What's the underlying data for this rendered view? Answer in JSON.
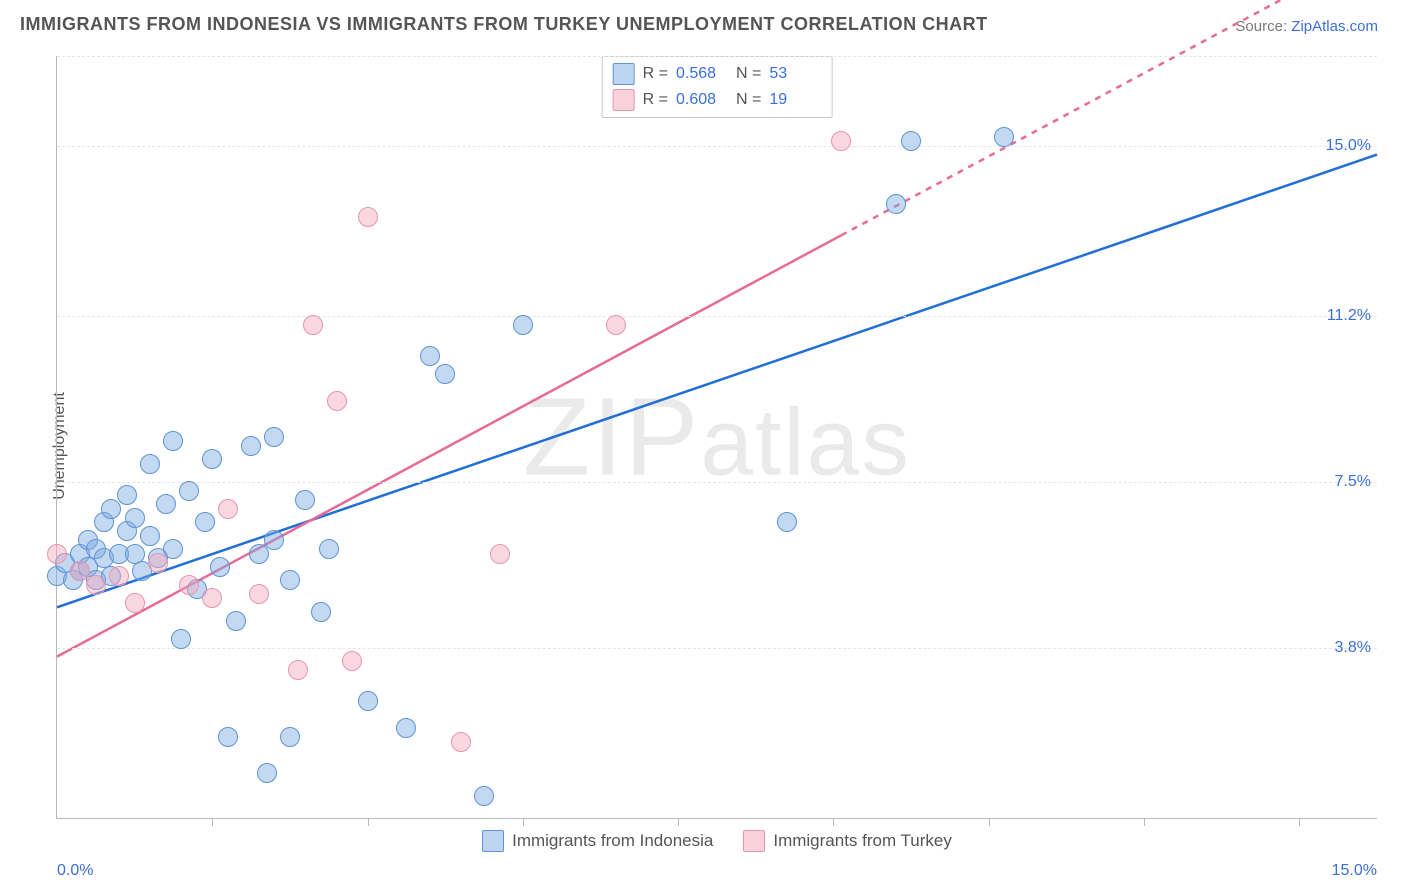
{
  "title": "IMMIGRANTS FROM INDONESIA VS IMMIGRANTS FROM TURKEY UNEMPLOYMENT CORRELATION CHART",
  "source_prefix": "Source: ",
  "source_name": "ZipAtlas.com",
  "ylabel": "Unemployment",
  "watermark": {
    "a": "ZIP",
    "b": "atlas"
  },
  "chart": {
    "type": "scatter",
    "xlim": [
      0,
      17
    ],
    "ylim": [
      0,
      17
    ],
    "xticks": [
      0,
      15
    ],
    "xtick_labels": [
      "0.0%",
      "15.0%"
    ],
    "xtick_minor": [
      2,
      4,
      6,
      8,
      10,
      12,
      14,
      16
    ],
    "yticks": [
      3.8,
      7.5,
      11.2,
      15.0
    ],
    "ytick_labels": [
      "3.8%",
      "7.5%",
      "11.2%",
      "15.0%"
    ],
    "grid_color": "#e6e6e6",
    "border_color": "#b9b9b9",
    "point_radius": 9,
    "series": [
      {
        "name": "Immigrants from Indonesia",
        "key": "a",
        "fill": "rgba(123,171,227,.45)",
        "stroke": "#5f94d4",
        "line_color": "#1f6fd6",
        "R": "0.568",
        "N": "53",
        "trend": {
          "x1": 0,
          "y1": 4.7,
          "x2": 17,
          "y2": 14.8,
          "dash_from_x": 17
        },
        "points": [
          [
            0.0,
            5.4
          ],
          [
            0.1,
            5.7
          ],
          [
            0.2,
            5.3
          ],
          [
            0.3,
            5.9
          ],
          [
            0.3,
            5.5
          ],
          [
            0.4,
            6.2
          ],
          [
            0.4,
            5.6
          ],
          [
            0.5,
            5.3
          ],
          [
            0.5,
            6.0
          ],
          [
            0.6,
            5.8
          ],
          [
            0.6,
            6.6
          ],
          [
            0.7,
            6.9
          ],
          [
            0.7,
            5.4
          ],
          [
            0.8,
            5.9
          ],
          [
            0.9,
            6.4
          ],
          [
            0.9,
            7.2
          ],
          [
            1.0,
            5.9
          ],
          [
            1.0,
            6.7
          ],
          [
            1.1,
            5.5
          ],
          [
            1.2,
            6.3
          ],
          [
            1.2,
            7.9
          ],
          [
            1.3,
            5.8
          ],
          [
            1.4,
            7.0
          ],
          [
            1.5,
            8.4
          ],
          [
            1.5,
            6.0
          ],
          [
            1.6,
            4.0
          ],
          [
            1.7,
            7.3
          ],
          [
            1.8,
            5.1
          ],
          [
            1.9,
            6.6
          ],
          [
            2.0,
            8.0
          ],
          [
            2.1,
            5.6
          ],
          [
            2.2,
            1.8
          ],
          [
            2.3,
            4.4
          ],
          [
            2.5,
            8.3
          ],
          [
            2.6,
            5.9
          ],
          [
            2.7,
            1.0
          ],
          [
            2.8,
            6.2
          ],
          [
            2.8,
            8.5
          ],
          [
            3.0,
            5.3
          ],
          [
            3.0,
            1.8
          ],
          [
            3.2,
            7.1
          ],
          [
            3.4,
            4.6
          ],
          [
            3.5,
            6.0
          ],
          [
            4.0,
            2.6
          ],
          [
            4.5,
            2.0
          ],
          [
            4.8,
            10.3
          ],
          [
            5.0,
            9.9
          ],
          [
            5.5,
            0.5
          ],
          [
            6.0,
            11.0
          ],
          [
            9.4,
            6.6
          ],
          [
            10.8,
            13.7
          ],
          [
            11.0,
            15.1
          ],
          [
            12.2,
            15.2
          ]
        ]
      },
      {
        "name": "Immigrants from Turkey",
        "key": "b",
        "fill": "rgba(244,166,189,.45)",
        "stroke": "#e697b0",
        "line_color": "#e86b94",
        "R": "0.608",
        "N": "19",
        "trend": {
          "x1": 0,
          "y1": 3.6,
          "x2": 10.1,
          "y2": 13.0,
          "dash_to_x": 17,
          "dash_to_y": 19.4
        },
        "points": [
          [
            0.0,
            5.9
          ],
          [
            0.3,
            5.5
          ],
          [
            0.5,
            5.2
          ],
          [
            0.8,
            5.4
          ],
          [
            1.0,
            4.8
          ],
          [
            1.3,
            5.7
          ],
          [
            1.7,
            5.2
          ],
          [
            2.0,
            4.9
          ],
          [
            2.2,
            6.9
          ],
          [
            2.6,
            5.0
          ],
          [
            3.1,
            3.3
          ],
          [
            3.3,
            11.0
          ],
          [
            3.6,
            9.3
          ],
          [
            3.8,
            3.5
          ],
          [
            4.0,
            13.4
          ],
          [
            5.2,
            1.7
          ],
          [
            5.7,
            5.9
          ],
          [
            7.2,
            11.0
          ],
          [
            10.1,
            15.1
          ]
        ]
      }
    ]
  },
  "legend_top": {
    "r_label": "R =",
    "n_label": "N ="
  },
  "legend_bottom": [
    "Immigrants from Indonesia",
    "Immigrants from Turkey"
  ]
}
